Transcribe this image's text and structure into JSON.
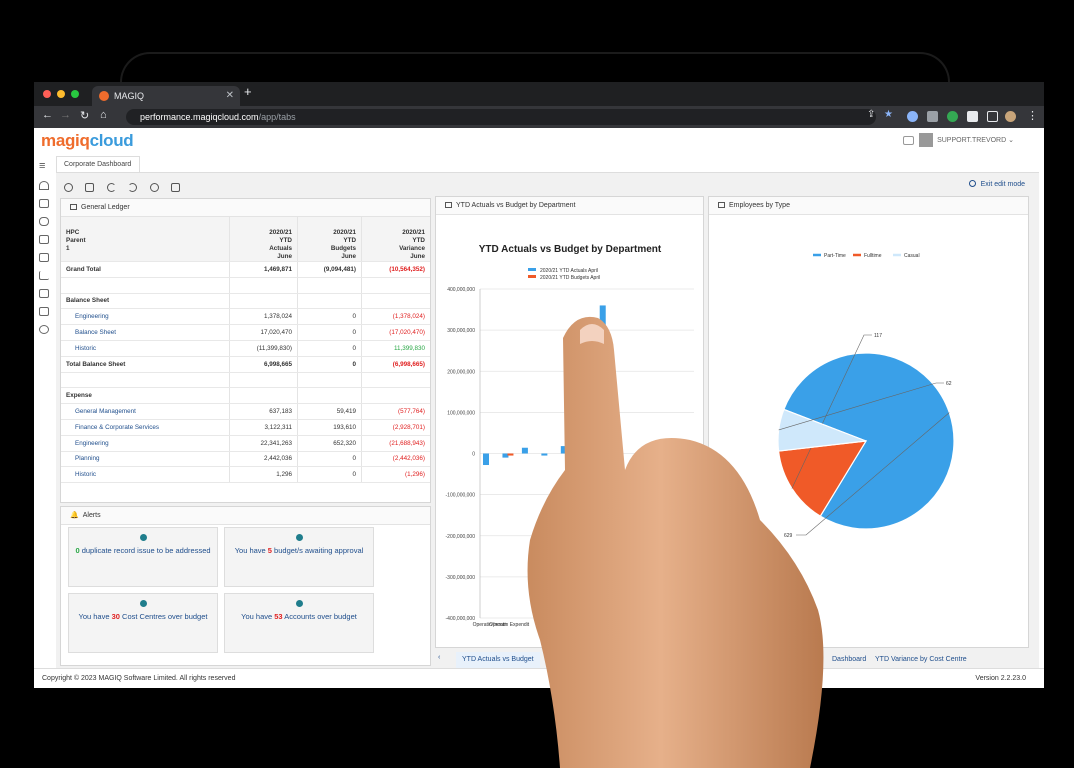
{
  "browser": {
    "tab_title": "MAGIQ",
    "url_host": "performance.magiqcloud.com",
    "url_path": "/app/tabs"
  },
  "app": {
    "logo_part1": "magiq",
    "logo_part2": "cloud",
    "user_name": "SUPPORT.TREVORD",
    "dashboard_tab": "Corporate Dashboard",
    "exit_edit_label": "Exit edit mode"
  },
  "ledger": {
    "title": "General Ledger",
    "header_label": [
      "HPC",
      "Parent",
      "1"
    ],
    "columns": [
      [
        "2020/21",
        "YTD",
        "Actuals",
        "June"
      ],
      [
        "2020/21",
        "YTD",
        "Budgets",
        "June"
      ],
      [
        "2020/21",
        "YTD",
        "Variance",
        "June"
      ]
    ],
    "rows": [
      {
        "label": "Grand Total",
        "a": "1,469,871",
        "b": "(9,094,481)",
        "c": "(10,564,352)",
        "style": "bold",
        "cneg": "true"
      },
      {
        "label": "",
        "a": "",
        "b": "",
        "c": "",
        "style": "blank"
      },
      {
        "label": "Balance Sheet",
        "a": "",
        "b": "",
        "c": "",
        "style": "bold"
      },
      {
        "label": "Engineering",
        "a": "1,378,024",
        "b": "0",
        "c": "(1,378,024)",
        "style": "link",
        "cneg": "true"
      },
      {
        "label": "Balance Sheet",
        "a": "17,020,470",
        "b": "0",
        "c": "(17,020,470)",
        "style": "link",
        "cneg": "true"
      },
      {
        "label": "Historic",
        "a": "(11,399,830)",
        "b": "0",
        "c": "11,399,830",
        "style": "link",
        "cpos": "true"
      },
      {
        "label": "Total Balance Sheet",
        "a": "6,998,665",
        "b": "0",
        "c": "(6,998,665)",
        "style": "bold",
        "cneg": "true"
      },
      {
        "label": "",
        "a": "",
        "b": "",
        "c": "",
        "style": "blank"
      },
      {
        "label": "Expense",
        "a": "",
        "b": "",
        "c": "",
        "style": "bold"
      },
      {
        "label": "General Management",
        "a": "637,183",
        "b": "59,419",
        "c": "(577,764)",
        "style": "link",
        "cneg": "true"
      },
      {
        "label": "Finance & Corporate Services",
        "a": "3,122,311",
        "b": "193,610",
        "c": "(2,928,701)",
        "style": "link",
        "cneg": "true"
      },
      {
        "label": "Engineering",
        "a": "22,341,263",
        "b": "652,320",
        "c": "(21,688,943)",
        "style": "link",
        "cneg": "true"
      },
      {
        "label": "Planning",
        "a": "2,442,036",
        "b": "0",
        "c": "(2,442,036)",
        "style": "link",
        "cneg": "true"
      },
      {
        "label": "Historic",
        "a": "1,296",
        "b": "0",
        "c": "(1,296)",
        "style": "link",
        "cneg": "true"
      }
    ]
  },
  "alerts": {
    "title": "Alerts",
    "items": [
      {
        "pre": "",
        "num": "0",
        "post": " duplicate record issue to be addressed",
        "green": "true"
      },
      {
        "pre": "You have ",
        "num": "5",
        "post": " budget/s awaiting approval"
      },
      {
        "pre": "You have ",
        "num": "30",
        "post": " Cost Centres over budget"
      },
      {
        "pre": "You have ",
        "num": "53",
        "post": " Accounts over budget"
      }
    ]
  },
  "bar_panel_title": "YTD Actuals vs Budget by Department",
  "pie_panel_title": "Employees by Type",
  "chart_data": [
    {
      "type": "bar",
      "title": "YTD Actuals vs Budget by Department",
      "ylim": [
        -400000000,
        400000000
      ],
      "yticks": [
        "400,000,000",
        "300,000,000",
        "200,000,000",
        "100,000,000",
        "0",
        "-100,000,000",
        "-200,000,000",
        "-300,000,000",
        "-400,000,000"
      ],
      "categories": [
        "Operating Income",
        "Operating Expenditure",
        "",
        "",
        "",
        "",
        "",
        "",
        "",
        "",
        ""
      ],
      "visible_category_labels": [
        "Operatin Incom",
        "Operatin Expendit"
      ],
      "series": [
        {
          "name": "2020/21 YTD Actuals April",
          "color": "#3aa0e8",
          "values": [
            -28000000,
            -10000000,
            14000000,
            -5000000,
            18000000,
            0,
            360000000,
            0,
            -18000000,
            -18000000,
            -10000000
          ]
        },
        {
          "name": "2020/21 YTD Budgets April",
          "color": "#f05a28",
          "values": [
            0,
            -5000000,
            0,
            0,
            0,
            0,
            0,
            0,
            0,
            0,
            0
          ]
        }
      ],
      "grid": true,
      "legend": "top"
    },
    {
      "type": "pie",
      "legend": "top",
      "legend_entries": [
        "Part-Time",
        "Fulltime",
        "Casual"
      ],
      "slices": [
        {
          "label": "Part-Time",
          "value": 629,
          "color": "#3aa0e8"
        },
        {
          "label": "Fulltime",
          "value": 117,
          "color": "#f05a28"
        },
        {
          "label": "Casual",
          "value": 62,
          "color": "#cfe8fb"
        }
      ]
    }
  ],
  "bottom_tabs": [
    "YTD Actuals vs Budget",
    "Dashboard",
    "YTD Variance by Cost Centre"
  ],
  "footer": {
    "copyright": "Copyright © 2023 MAGIQ Software Limited. All rights reserved",
    "version": "Version 2.2.23.0"
  }
}
